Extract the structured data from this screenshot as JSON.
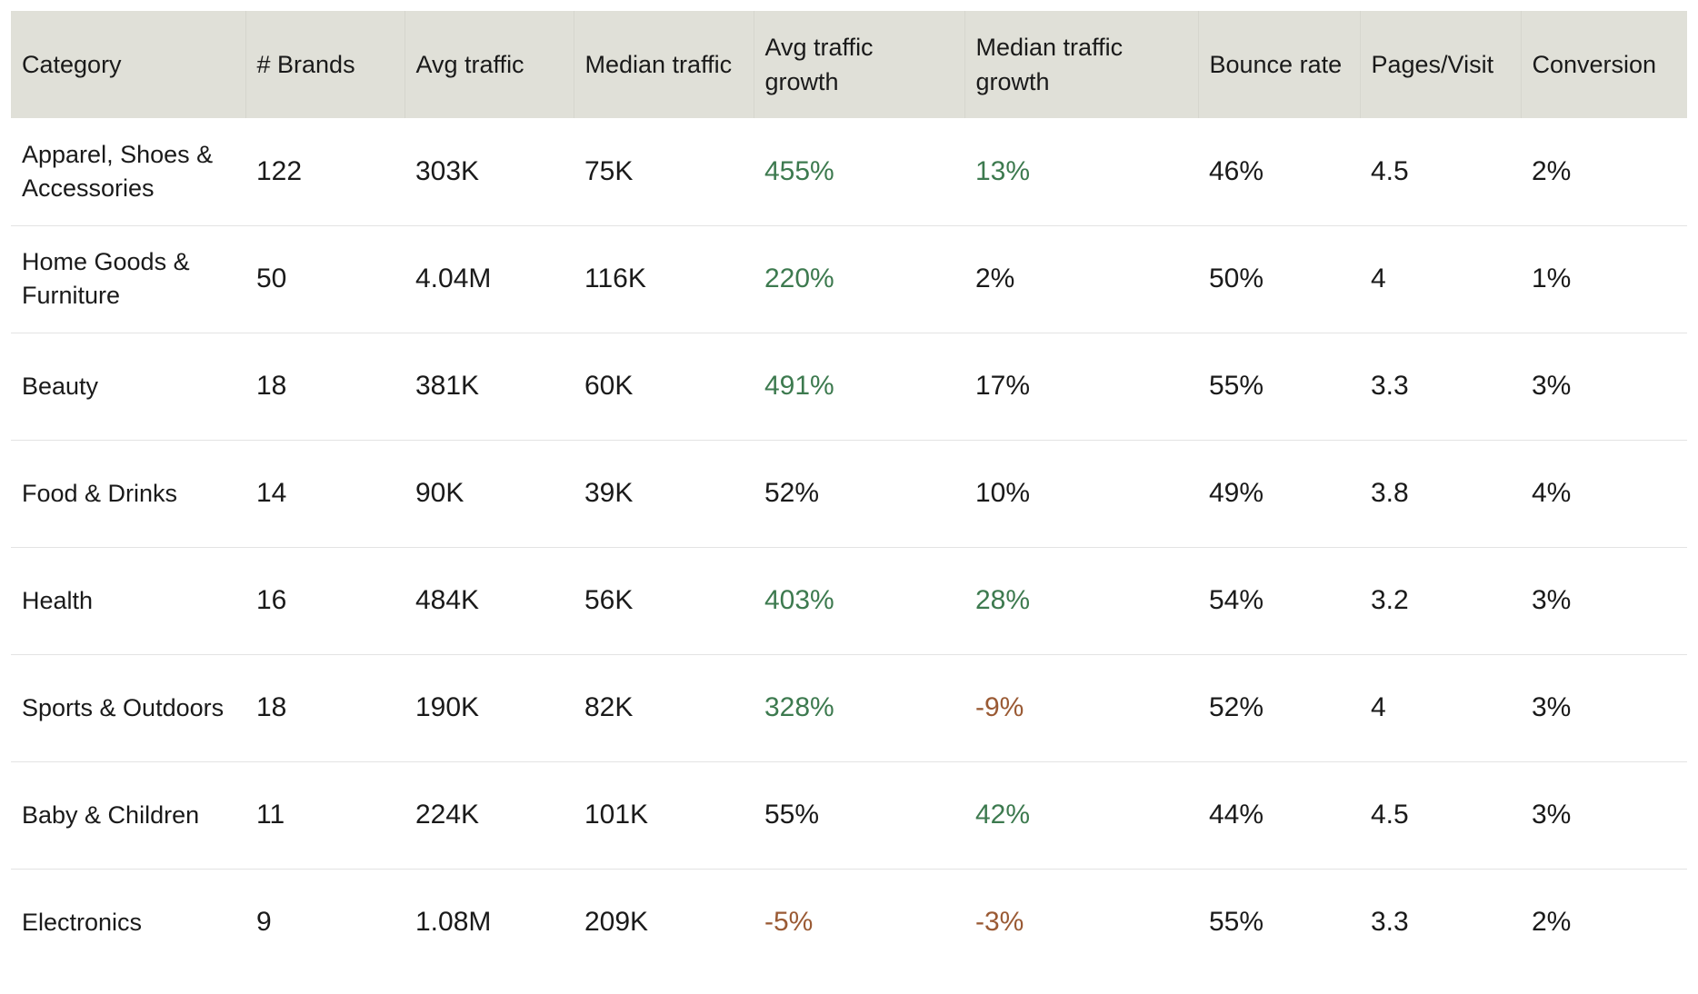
{
  "table": {
    "headers": [
      "Category",
      "# Brands",
      "Avg traffic",
      "Median traffic",
      "Avg traffic growth",
      "Median traffic growth",
      "Bounce rate",
      "Pages/Visit",
      "Conversion"
    ],
    "rows": [
      {
        "cells": [
          "Apparel, Shoes & Accessories",
          "122",
          "303K",
          "75K",
          "455%",
          "13%",
          "46%",
          "4.5",
          "2%"
        ],
        "avg_growth_tone": "pos",
        "median_growth_tone": "pos"
      },
      {
        "cells": [
          "Home Goods & Furniture",
          "50",
          "4.04M",
          "116K",
          "220%",
          "2%",
          "50%",
          "4",
          "1%"
        ],
        "avg_growth_tone": "pos",
        "median_growth_tone": "neu"
      },
      {
        "cells": [
          "Beauty",
          "18",
          "381K",
          "60K",
          "491%",
          "17%",
          "55%",
          "3.3",
          "3%"
        ],
        "avg_growth_tone": "pos",
        "median_growth_tone": "neu"
      },
      {
        "cells": [
          "Food & Drinks",
          "14",
          "90K",
          "39K",
          "52%",
          "10%",
          "49%",
          "3.8",
          "4%"
        ],
        "avg_growth_tone": "neu",
        "median_growth_tone": "neu"
      },
      {
        "cells": [
          "Health",
          "16",
          "484K",
          "56K",
          "403%",
          "28%",
          "54%",
          "3.2",
          "3%"
        ],
        "avg_growth_tone": "pos",
        "median_growth_tone": "pos"
      },
      {
        "cells": [
          "Sports & Outdoors",
          "18",
          "190K",
          "82K",
          "328%",
          "-9%",
          "52%",
          "4",
          "3%"
        ],
        "avg_growth_tone": "pos",
        "median_growth_tone": "neg"
      },
      {
        "cells": [
          "Baby & Children",
          "11",
          "224K",
          "101K",
          "55%",
          "42%",
          "44%",
          "4.5",
          "3%"
        ],
        "avg_growth_tone": "neu",
        "median_growth_tone": "pos"
      },
      {
        "cells": [
          "Electronics",
          "9",
          "1.08M",
          "209K",
          "-5%",
          "-3%",
          "55%",
          "3.3",
          "2%"
        ],
        "avg_growth_tone": "neg",
        "median_growth_tone": "neg"
      }
    ]
  },
  "colors": {
    "header_background": "#e0e0d8",
    "positive_growth": "#3d7a4f",
    "negative_growth": "#9a5a34"
  }
}
